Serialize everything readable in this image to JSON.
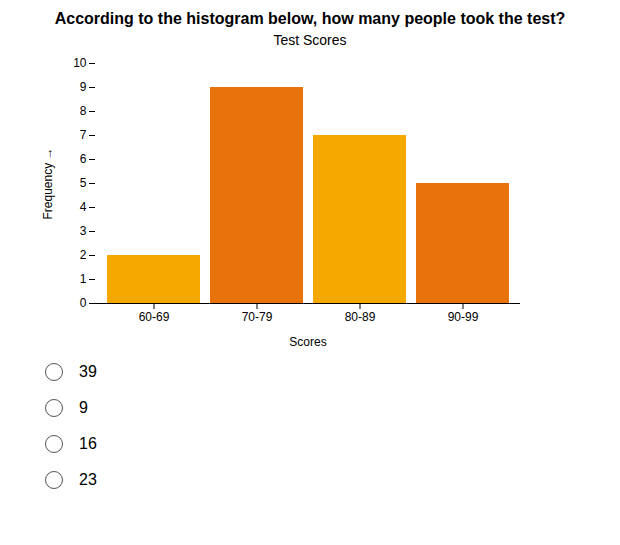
{
  "chart_data": {
    "type": "bar",
    "title": "According to the histogram below, how many people took the test?",
    "subtitle": "Test Scores",
    "categories": [
      "60-69",
      "70-79",
      "80-89",
      "90-99"
    ],
    "values": [
      2,
      9,
      7,
      5
    ],
    "colors": [
      "#F5A800",
      "#E8720C",
      "#F5A800",
      "#E8720C"
    ],
    "xlabel": "Scores",
    "ylabel": "Frequency",
    "ylim": [
      0,
      10
    ],
    "yticks": [
      0,
      1,
      2,
      3,
      4,
      5,
      6,
      7,
      8,
      9,
      10
    ],
    "annotations": [
      "39",
      "9",
      "16",
      "23"
    ]
  }
}
